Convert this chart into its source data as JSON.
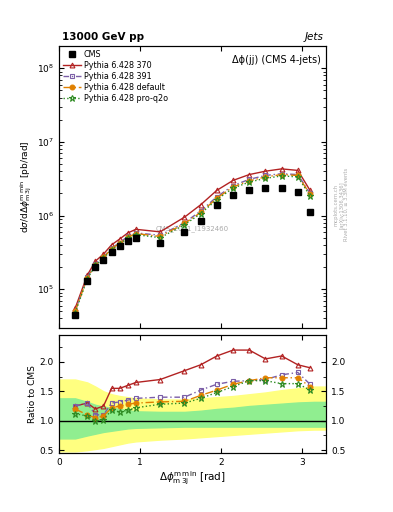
{
  "title_top": "13000 GeV pp",
  "title_right": "Jets",
  "plot_title": "Δϕ(jj) (CMS 4-jets)",
  "ylabel_main": "dσ/dΔϕ$^{\\rm m\\,min}_{\\rm m\\,3j}$ [pb/rad]",
  "ylabel_ratio": "Ratio to CMS",
  "watermark": "CMS_2021_I1932460",
  "rivet_label": "Rivet 3.1.10, ≥ 3.3M events",
  "arxiv_label": "[arXiv:1306.3436]",
  "mcplots_label": "mcplots.cern.ch",
  "x_data": [
    0.2,
    0.35,
    0.45,
    0.55,
    0.65,
    0.75,
    0.85,
    0.95,
    1.25,
    1.55,
    1.75,
    1.95,
    2.15,
    2.35,
    2.55,
    2.75,
    2.95,
    3.1
  ],
  "cms_y": [
    45000.0,
    130000.0,
    200000.0,
    250000.0,
    320000.0,
    380000.0,
    450000.0,
    500000.0,
    420000.0,
    600000.0,
    850000.0,
    1400000.0,
    1900000.0,
    2200000.0,
    2400000.0,
    2400000.0,
    2100000.0,
    1100000.0
  ],
  "py370_y": [
    55000.0,
    155000.0,
    240000.0,
    300000.0,
    400000.0,
    480000.0,
    580000.0,
    650000.0,
    600000.0,
    950000.0,
    1400000.0,
    2200000.0,
    3000000.0,
    3600000.0,
    4000000.0,
    4300000.0,
    4100000.0,
    2200000.0
  ],
  "py391_y": [
    50000.0,
    145000.0,
    220000.0,
    275000.0,
    360000.0,
    430000.0,
    520000.0,
    580000.0,
    540000.0,
    800000.0,
    1150000.0,
    1800000.0,
    2550000.0,
    3100000.0,
    3500000.0,
    3700000.0,
    3600000.0,
    2000000.0
  ],
  "pydef_y": [
    50000.0,
    142000.0,
    215000.0,
    270000.0,
    355000.0,
    420000.0,
    510000.0,
    570000.0,
    520000.0,
    780000.0,
    1100000.0,
    1720000.0,
    2450000.0,
    2950000.0,
    3350000.0,
    3600000.0,
    3500000.0,
    1950000.0
  ],
  "pyq2o_y": [
    48000.0,
    138000.0,
    210000.0,
    262000.0,
    345000.0,
    410000.0,
    495000.0,
    550000.0,
    500000.0,
    750000.0,
    1060000.0,
    1650000.0,
    2350000.0,
    2850000.0,
    3200000.0,
    3450000.0,
    3350000.0,
    1850000.0
  ],
  "ratio_py370": [
    1.25,
    1.3,
    1.2,
    1.25,
    1.55,
    1.55,
    1.6,
    1.65,
    1.7,
    1.85,
    1.95,
    2.1,
    2.2,
    2.2,
    2.05,
    2.1,
    1.95,
    1.9
  ],
  "ratio_py391": [
    1.25,
    1.3,
    1.1,
    1.1,
    1.3,
    1.32,
    1.35,
    1.38,
    1.4,
    1.4,
    1.52,
    1.62,
    1.67,
    1.68,
    1.7,
    1.78,
    1.82,
    1.62
  ],
  "ratio_pydef": [
    1.2,
    1.1,
    1.05,
    1.08,
    1.22,
    1.25,
    1.28,
    1.3,
    1.32,
    1.33,
    1.43,
    1.52,
    1.62,
    1.68,
    1.73,
    1.73,
    1.73,
    1.58
  ],
  "ratio_pyq2o": [
    1.12,
    1.08,
    1.0,
    1.02,
    1.18,
    1.15,
    1.18,
    1.22,
    1.28,
    1.3,
    1.38,
    1.48,
    1.58,
    1.68,
    1.68,
    1.63,
    1.63,
    1.52
  ],
  "band_x": [
    0.0,
    0.2,
    0.35,
    0.45,
    0.55,
    0.65,
    0.75,
    0.85,
    0.95,
    1.25,
    1.55,
    1.75,
    1.95,
    2.15,
    2.35,
    2.55,
    2.75,
    2.95,
    3.15,
    3.3
  ],
  "band_yellow_lo": [
    0.48,
    0.48,
    0.5,
    0.52,
    0.54,
    0.57,
    0.6,
    0.63,
    0.65,
    0.68,
    0.7,
    0.72,
    0.74,
    0.76,
    0.78,
    0.8,
    0.82,
    0.84,
    0.85,
    0.85
  ],
  "band_yellow_hi": [
    1.7,
    1.7,
    1.65,
    1.58,
    1.5,
    1.45,
    1.42,
    1.4,
    1.38,
    1.36,
    1.36,
    1.38,
    1.4,
    1.42,
    1.45,
    1.48,
    1.52,
    1.55,
    1.58,
    1.58
  ],
  "band_green_lo": [
    0.7,
    0.7,
    0.75,
    0.78,
    0.81,
    0.83,
    0.85,
    0.87,
    0.88,
    0.89,
    0.9,
    0.9,
    0.9,
    0.9,
    0.9,
    0.9,
    0.9,
    0.9,
    0.9,
    0.9
  ],
  "band_green_hi": [
    1.38,
    1.38,
    1.32,
    1.27,
    1.24,
    1.22,
    1.2,
    1.18,
    1.16,
    1.15,
    1.15,
    1.17,
    1.2,
    1.22,
    1.25,
    1.27,
    1.29,
    1.31,
    1.32,
    1.32
  ],
  "color_py370": "#b22222",
  "color_py391": "#7b5ea7",
  "color_pydef": "#e08000",
  "color_pyq2o": "#2e8b22",
  "color_cms": "#000000",
  "ylim_main": [
    30000.0,
    200000000.0
  ],
  "ylim_ratio": [
    0.45,
    2.45
  ],
  "xlim": [
    0.0,
    3.3
  ]
}
